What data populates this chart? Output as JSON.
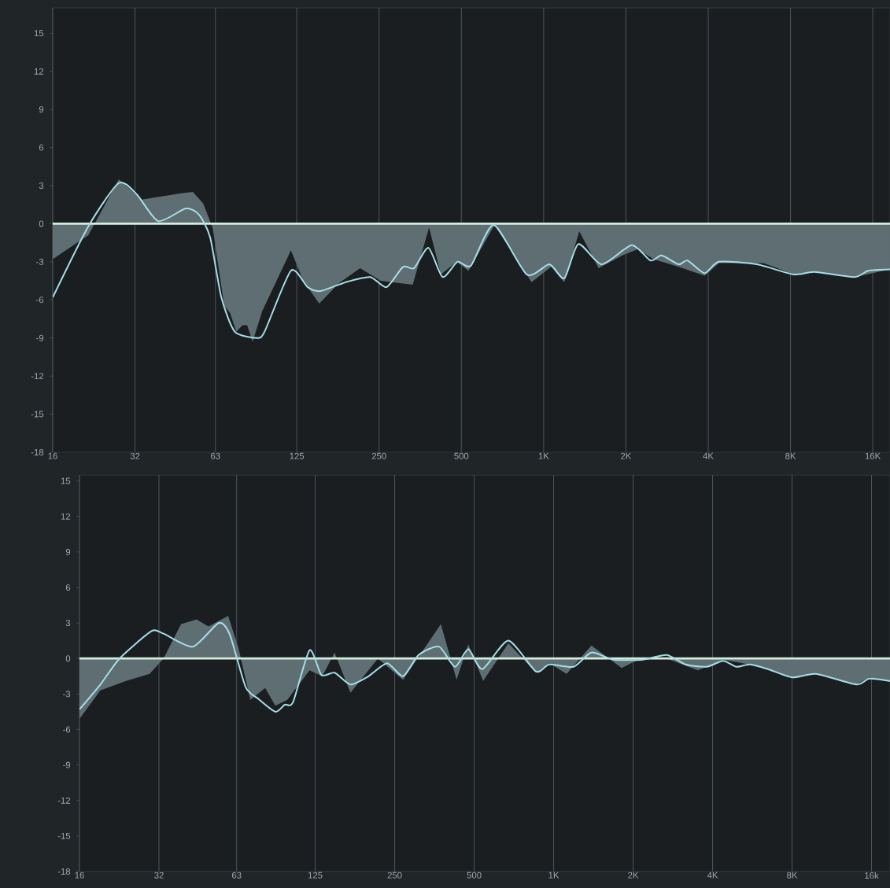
{
  "chart_data": [
    {
      "type": "area",
      "log": "x",
      "grid": "x",
      "xlim": [
        16,
        18500
      ],
      "ylim": [
        -18,
        17
      ],
      "xticks": [
        16,
        32,
        63,
        125,
        250,
        500,
        {
          "value": 1000,
          "label": "1K"
        },
        {
          "value": 2000,
          "label": "2K"
        },
        {
          "value": 4000,
          "label": "4K"
        },
        {
          "value": 8000,
          "label": "8K"
        },
        {
          "value": 16000,
          "label": "16K"
        }
      ],
      "yticks": [
        -18,
        -15,
        -12,
        -9,
        -6,
        -3,
        0,
        3,
        6,
        9,
        12,
        15
      ],
      "ref_lines": [
        {
          "axis": "y",
          "value": 0,
          "color": "#d5eedb"
        }
      ],
      "series": [
        {
          "color": "#5e6e73",
          "x": [
            16,
            21.6,
            27.9,
            33.9,
            38.7,
            47.2,
            52.1,
            56.8,
            61.5,
            67.9,
            71.2,
            75.1,
            79.1,
            82.3,
            86.2,
            93.4,
            119,
            132,
            151,
            178,
            213,
            254,
            332,
            381,
            421,
            481,
            531,
            661,
            903,
            1065,
            1190,
            1350,
            1590,
            1940,
            2210,
            2520,
            3120,
            3880,
            4380,
            6390,
            8220,
            9770,
            13700,
            18500
          ],
          "values": [
            -2.8,
            -0.9,
            3.5,
            1.9,
            2.1,
            2.4,
            2.5,
            1.6,
            -0.3,
            -6.5,
            -7.0,
            -8.5,
            -8.0,
            -8.0,
            -9.3,
            -6.9,
            -2.1,
            -4.5,
            -6.3,
            -4.7,
            -3.5,
            -4.5,
            -4.8,
            -0.3,
            -4.0,
            -3.0,
            -3.7,
            -0.1,
            -4.6,
            -3.4,
            -4.6,
            -0.6,
            -3.5,
            -2.5,
            -2.0,
            -2.8,
            -3.4,
            -4.1,
            -3.1,
            -3.1,
            -4.0,
            -3.8,
            -4.2,
            -3.6
          ]
        },
        {
          "type": "line",
          "color": "#a6dfe8",
          "x": [
            16,
            21.6,
            27.9,
            32.5,
            38.9,
            49.1,
            54.9,
            60.3,
            66.2,
            74.1,
            89.1,
            95.3,
            119,
            137,
            153,
            189,
            232,
            266,
            306,
            336,
            379,
            427,
            484,
            542,
            657,
            868,
            1050,
            1190,
            1340,
            1630,
            2100,
            2460,
            2700,
            3120,
            3360,
            3880,
            4380,
            6020,
            8220,
            9770,
            13700,
            15400,
            18500
          ],
          "values": [
            -5.8,
            -0.2,
            3.2,
            2.3,
            0.2,
            1.2,
            0.7,
            -1.1,
            -5.8,
            -8.5,
            -9.0,
            -8.5,
            -3.7,
            -5.0,
            -5.3,
            -4.6,
            -4.2,
            -5.0,
            -3.4,
            -3.5,
            -1.9,
            -4.2,
            -3.0,
            -3.3,
            -0.1,
            -4.0,
            -3.2,
            -4.3,
            -1.6,
            -3.2,
            -1.7,
            -2.9,
            -2.5,
            -3.2,
            -2.9,
            -3.9,
            -3.0,
            -3.2,
            -4.0,
            -3.8,
            -4.2,
            -3.7,
            -3.6
          ]
        }
      ]
    },
    {
      "type": "area",
      "log": "x",
      "grid": "x",
      "xlim": [
        16,
        18800
      ],
      "ylim": [
        -18,
        15.5
      ],
      "xticks": [
        16,
        32,
        63,
        125,
        250,
        500,
        {
          "value": 1000,
          "label": "1K"
        },
        {
          "value": 2000,
          "label": "2K"
        },
        {
          "value": 4000,
          "label": "4K"
        },
        {
          "value": 8000,
          "label": "8K"
        },
        {
          "value": 16000,
          "label": "16k"
        }
      ],
      "yticks": [
        -18,
        -15,
        -12,
        -9,
        -6,
        -3,
        0,
        3,
        6,
        9,
        12,
        15
      ],
      "ref_lines": [
        {
          "axis": "y",
          "value": 0,
          "color": "#d5eedb"
        }
      ],
      "series": [
        {
          "color": "#5e6e73",
          "x": [
            16,
            19.2,
            24.0,
            29.5,
            33.3,
            38.8,
            44.5,
            49.3,
            58.5,
            64,
            71.0,
            80.8,
            88.3,
            98.0,
            119,
            133,
            148,
            170,
            216,
            269,
            374,
            429,
            475,
            541,
            674,
            857,
            963,
            1120,
            1390,
            1810,
            2180,
            2680,
            3520,
            4390,
            5810,
            8020,
            9860,
            14000,
            15700,
            18800
          ],
          "values": [
            -5.1,
            -2.7,
            -1.9,
            -1.3,
            0.0,
            2.9,
            3.3,
            2.7,
            3.6,
            0.9,
            -3.5,
            -2.5,
            -4.0,
            -3.5,
            -1.0,
            -1.5,
            0.5,
            -2.9,
            0.0,
            -1.8,
            2.9,
            -1.8,
            1.2,
            -1.9,
            1.3,
            -1.2,
            -0.4,
            -1.3,
            1.1,
            -0.8,
            0.1,
            0.0,
            -1.0,
            -0.1,
            -0.6,
            -1.6,
            -1.3,
            -2.2,
            -1.6,
            -2.0
          ]
        },
        {
          "type": "line",
          "color": "#a6dfe8",
          "x": [
            16,
            19.2,
            22.7,
            29.9,
            33.3,
            43.0,
            53.9,
            59.4,
            68.1,
            76.0,
            88.3,
            95.9,
            103,
            119,
            132,
            148,
            170,
            199,
            234,
            269,
            308,
            368,
            423,
            475,
            537,
            674,
            857,
            963,
            1190,
            1390,
            1690,
            2180,
            2680,
            3160,
            3800,
            4390,
            4930,
            5540,
            6490,
            8020,
            9860,
            14000,
            15700,
            18800
          ],
          "values": [
            -4.3,
            -2.2,
            0.0,
            2.3,
            2.1,
            1.0,
            3.0,
            2.0,
            -2.4,
            -3.4,
            -4.5,
            -3.9,
            -3.7,
            0.7,
            -1.4,
            -1.2,
            -2.2,
            -1.5,
            -0.4,
            -1.5,
            0.3,
            1.0,
            -0.7,
            0.8,
            -0.9,
            1.5,
            -1.1,
            -0.5,
            -0.7,
            0.5,
            -0.1,
            -0.1,
            0.3,
            -0.5,
            -0.7,
            -0.2,
            -0.7,
            -0.5,
            -0.9,
            -1.6,
            -1.3,
            -2.2,
            -1.7,
            -1.9
          ]
        }
      ]
    }
  ]
}
